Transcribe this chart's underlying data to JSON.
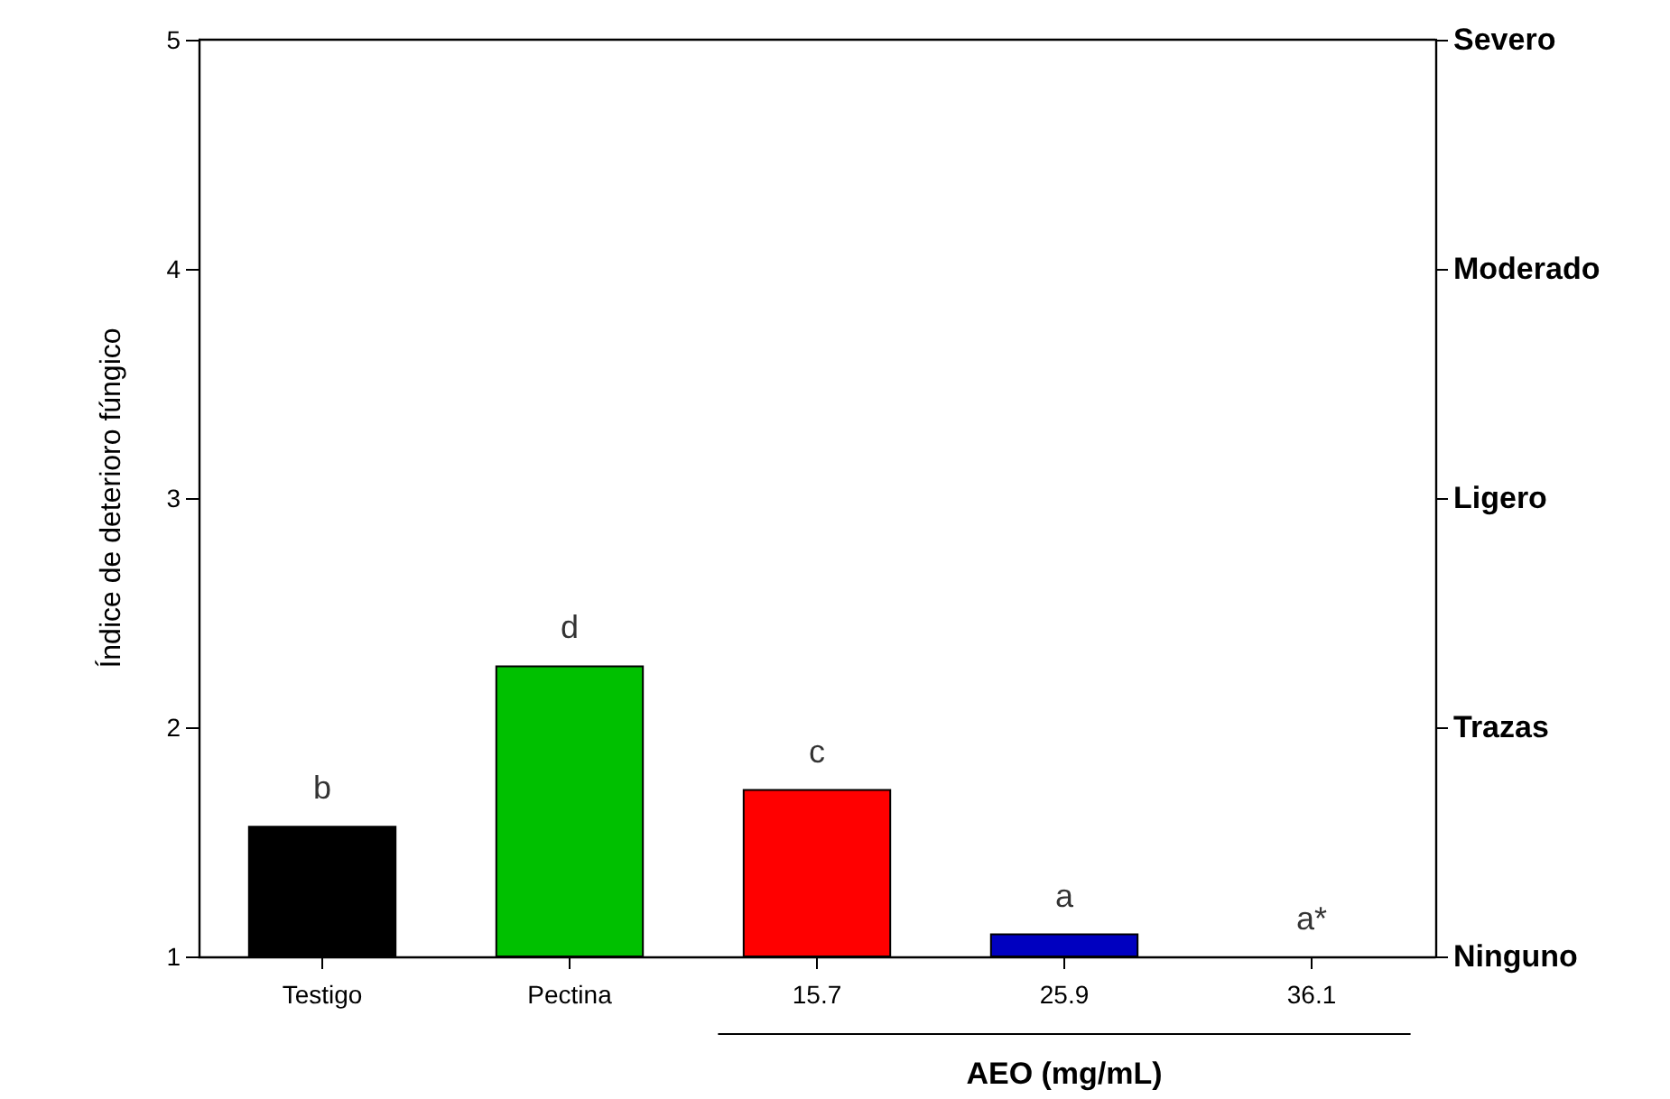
{
  "chart_data": {
    "type": "bar",
    "ylabel": "Índice de deterioro fúngico",
    "xlabel": "AEO (mg/mL)",
    "categories": [
      "Testigo",
      "Pectina",
      "15.7",
      "25.9",
      "36.1"
    ],
    "values": [
      1.57,
      2.27,
      1.73,
      1.1,
      1.0
    ],
    "colors": [
      "#000000",
      "#00c000",
      "#ff0000",
      "#0000c0",
      "#0000c0"
    ],
    "value_labels": [
      "b",
      "d",
      "c",
      "a",
      "a*"
    ],
    "ylim": [
      1,
      5
    ],
    "yticks": [
      1,
      2,
      3,
      4,
      5
    ],
    "y2_categories": [
      "Severo",
      "Moderado",
      "Ligero",
      "Trazas",
      "Ninguno"
    ],
    "grid": false
  }
}
